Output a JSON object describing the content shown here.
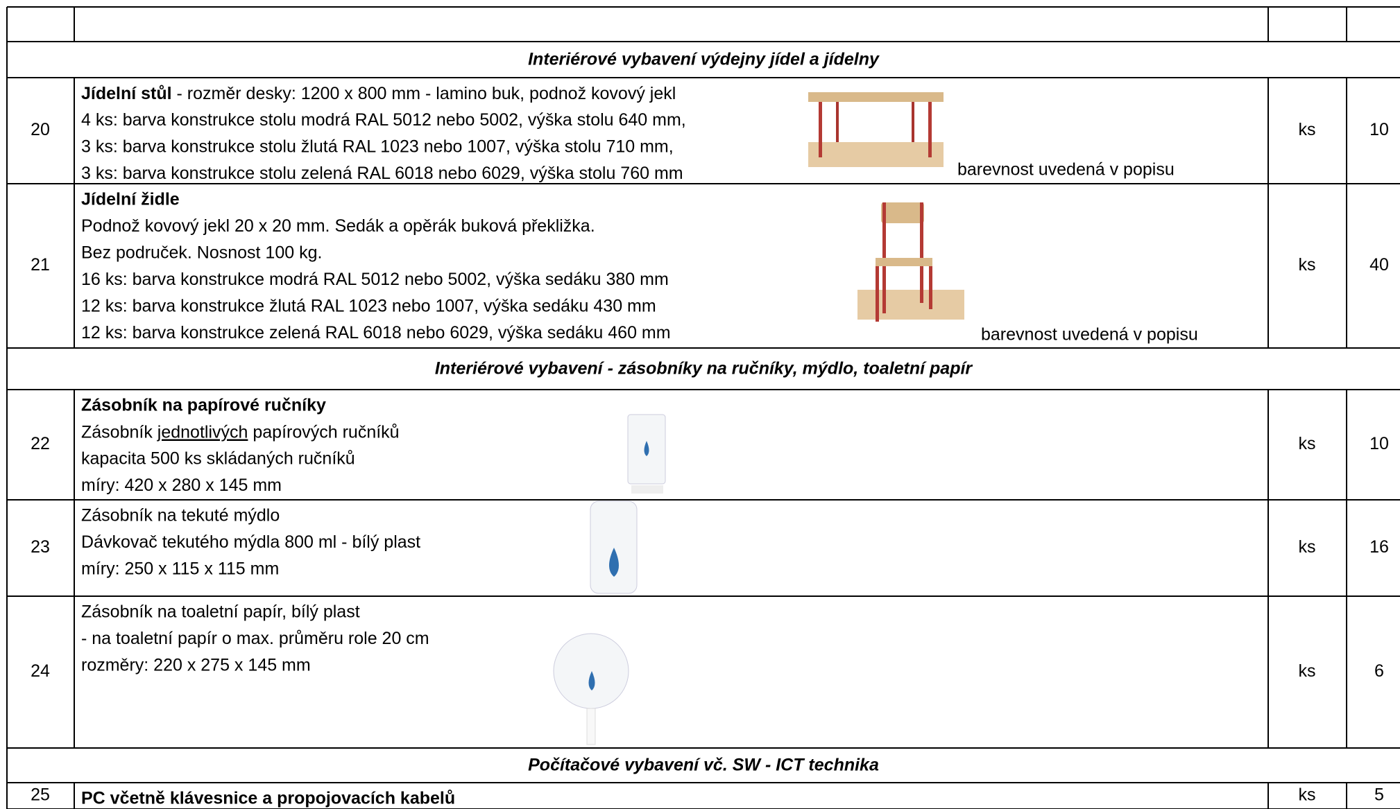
{
  "table": {
    "rows": [
      {
        "section": "Interiérové vybavení výdejny jídel a jídelny"
      },
      {
        "no": 20,
        "lines": [
          {
            "parts": [
              {
                "text": "Jídelní stůl",
                "bold": true
              },
              {
                "text": " - rozměr desky: 1200 x 800 mm - lamino buk, podnož kovový jekl"
              }
            ]
          },
          {
            "text": "4 ks: barva konstrukce stolu modrá RAL 5012 nebo 5002, výška stolu 640 mm,"
          },
          {
            "text": "3 ks: barva konstrukce stolu žlutá RAL 1023 nebo 1007, výška stolu 710 mm,"
          },
          {
            "text": "3 ks: barva konstrukce stolu zelená RAL 6018 nebo 6029, výška stolu 760 mm"
          }
        ],
        "note": "barevnost uvedená v popisu",
        "unit": "ks",
        "qty": 10
      },
      {
        "no": 21,
        "lines": [
          {
            "text": "Jídelní židle",
            "bold": true
          },
          {
            "text": "Podnož kovový jekl 20 x 20 mm. Sedák a opěrák buková překližka."
          },
          {
            "text": "Bez područek. Nosnost 100 kg."
          },
          {
            "text": "16 ks: barva konstrukce modrá RAL 5012 nebo 5002, výška sedáku 380 mm"
          },
          {
            "text": "12 ks: barva konstrukce žlutá RAL 1023 nebo 1007, výška sedáku 430 mm"
          },
          {
            "text": "12 ks: barva konstrukce zelená RAL 6018 nebo 6029, výška sedáku 460 mm"
          }
        ],
        "note": "barevnost uvedená v popisu",
        "unit": "ks",
        "qty": 40
      },
      {
        "section": "Interiérové vybavení - zásobníky na ručníky, mýdlo, toaletní papír"
      },
      {
        "no": 22,
        "lines": [
          {
            "text": "Zásobník na papírové ručníky",
            "bold": true
          },
          {
            "parts": [
              {
                "text": "Zásobník "
              },
              {
                "text": "jednotlivých",
                "underline": true
              },
              {
                "text": " papírových ručníků"
              }
            ],
            "small": true
          },
          {
            "text": "kapacita 500 ks skládaných ručníků"
          },
          {
            "text": "míry: 420 x 280 x 145 mm"
          }
        ],
        "unit": "ks",
        "qty": 10
      },
      {
        "no": 23,
        "lines": [
          {
            "text": "Zásobník na tekuté mýdlo"
          },
          {
            "text": "Dávkovač tekutého mýdla 800 ml - bílý plast",
            "small": true
          },
          {
            "text": "míry: 250 x 115 x 115 mm"
          }
        ],
        "unit": "ks",
        "qty": 16
      },
      {
        "no": 24,
        "lines": [
          {
            "text": "Zásobník na toaletní papír, bílý plast"
          },
          {
            "text": "- na toaletní papír o max. průměru role 20 cm",
            "small": true
          },
          {
            "text": "rozměry: 220 x 275 x 145 mm",
            "small": true
          }
        ],
        "unit": "ks",
        "qty": 6
      },
      {
        "section": "Počítačové vybavení vč. SW - ICT technika"
      },
      {
        "no": 25,
        "lines": [
          {
            "text": "PC včetně klávesnice a propojovacích kabelů",
            "bold": true
          }
        ],
        "unit": "ks",
        "qty": 5
      }
    ]
  }
}
